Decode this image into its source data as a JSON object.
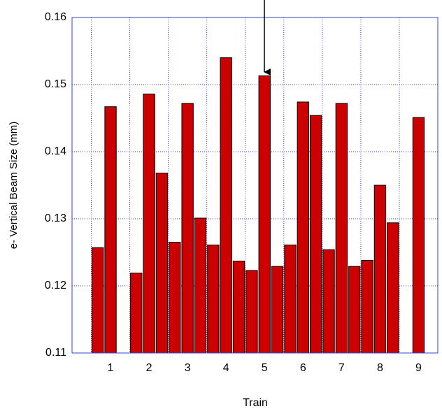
{
  "chart_data": {
    "type": "bar",
    "x": [
      0.667,
      1,
      1.667,
      2,
      2.333,
      2.667,
      3,
      3.333,
      3.667,
      4,
      4.333,
      4.667,
      5,
      5.333,
      5.667,
      6,
      6.333,
      6.667,
      7,
      7.333,
      7.667,
      8,
      8.333,
      9
    ],
    "values": [
      0.1257,
      0.1467,
      0.1219,
      0.1486,
      0.1368,
      0.1265,
      0.1472,
      0.1301,
      0.1261,
      0.154,
      0.1237,
      0.1223,
      0.1513,
      0.1229,
      0.1261,
      0.1474,
      0.1454,
      0.1254,
      0.1472,
      0.1229,
      0.1238,
      0.135,
      0.1294,
      0.1451
    ],
    "color": "#cc0000",
    "xlabel": "Train",
    "ylabel": "e- Vertical Beam Size (mm)",
    "xlim": [
      0,
      9.5
    ],
    "xticks": [
      1,
      2,
      3,
      4,
      5,
      6,
      7,
      8,
      9
    ],
    "xgrid": [
      0.5,
      1.5,
      2.5,
      3.5,
      4.5,
      5.5,
      6.5,
      7.5,
      8.5
    ],
    "ylim": [
      0.11,
      0.16
    ],
    "yticks": [
      0.11,
      0.12,
      0.13,
      0.14,
      0.15,
      0.16
    ],
    "grid": true
  }
}
